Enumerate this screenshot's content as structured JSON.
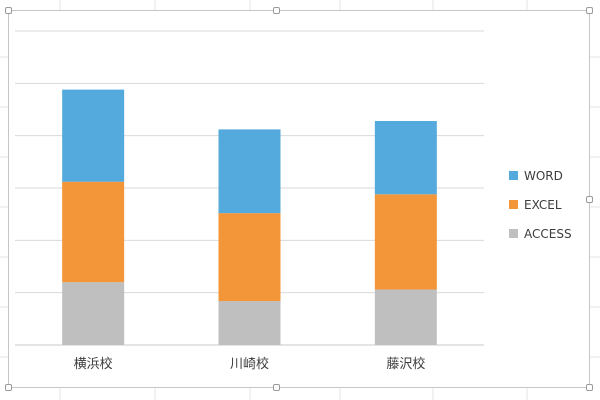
{
  "chart_data": {
    "type": "bar",
    "stacked": true,
    "categories": [
      "横浜校",
      "川崎校",
      "藤沢校"
    ],
    "series": [
      {
        "name": "ACCESS",
        "color": "#bfbfbf",
        "values": [
          60,
          42,
          53
        ]
      },
      {
        "name": "EXCEL",
        "color": "#f39539",
        "values": [
          96,
          84,
          91
        ]
      },
      {
        "name": "WORD",
        "color": "#54aadd",
        "values": [
          88,
          80,
          70
        ]
      }
    ],
    "ylim": [
      0,
      300
    ],
    "grid": true,
    "legend_position": "right",
    "legend_order": [
      "WORD",
      "EXCEL",
      "ACCESS"
    ]
  }
}
